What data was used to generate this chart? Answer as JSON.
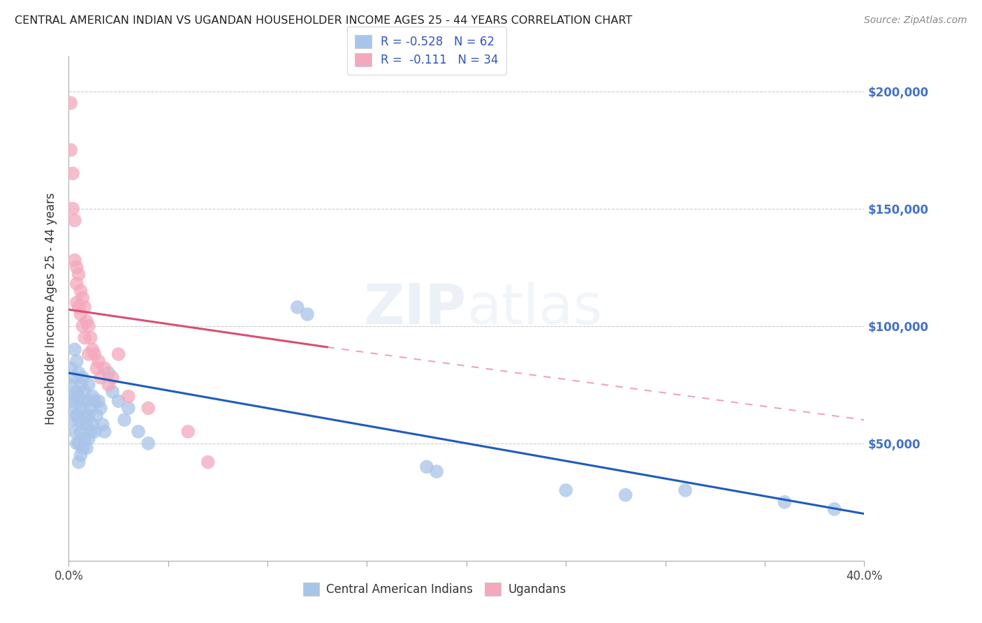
{
  "title": "CENTRAL AMERICAN INDIAN VS UGANDAN HOUSEHOLDER INCOME AGES 25 - 44 YEARS CORRELATION CHART",
  "source": "Source: ZipAtlas.com",
  "ylabel": "Householder Income Ages 25 - 44 years",
  "xlim": [
    0.0,
    0.4
  ],
  "ylim": [
    0,
    215000
  ],
  "yticks": [
    0,
    50000,
    100000,
    150000,
    200000
  ],
  "blue_label": "Central American Indians",
  "pink_label": "Ugandans",
  "blue_R": -0.528,
  "blue_N": 62,
  "pink_R": -0.111,
  "pink_N": 34,
  "blue_color": "#a8c4e8",
  "pink_color": "#f4a8bc",
  "blue_line_color": "#1e5bbf",
  "pink_line_color": "#d94f72",
  "blue_scatter_x": [
    0.001,
    0.001,
    0.002,
    0.002,
    0.002,
    0.003,
    0.003,
    0.003,
    0.003,
    0.004,
    0.004,
    0.004,
    0.004,
    0.005,
    0.005,
    0.005,
    0.005,
    0.005,
    0.006,
    0.006,
    0.006,
    0.006,
    0.007,
    0.007,
    0.007,
    0.007,
    0.008,
    0.008,
    0.008,
    0.009,
    0.009,
    0.009,
    0.01,
    0.01,
    0.01,
    0.011,
    0.011,
    0.012,
    0.012,
    0.013,
    0.013,
    0.014,
    0.015,
    0.016,
    0.017,
    0.018,
    0.02,
    0.022,
    0.025,
    0.028,
    0.03,
    0.035,
    0.04,
    0.115,
    0.12,
    0.18,
    0.185,
    0.25,
    0.28,
    0.31,
    0.36,
    0.385
  ],
  "blue_scatter_y": [
    82000,
    75000,
    70000,
    68000,
    60000,
    90000,
    78000,
    65000,
    55000,
    85000,
    72000,
    62000,
    50000,
    80000,
    70000,
    60000,
    50000,
    42000,
    75000,
    65000,
    55000,
    45000,
    78000,
    68000,
    58000,
    48000,
    72000,
    62000,
    52000,
    68000,
    58000,
    48000,
    75000,
    62000,
    52000,
    65000,
    55000,
    70000,
    58000,
    68000,
    55000,
    62000,
    68000,
    65000,
    58000,
    55000,
    80000,
    72000,
    68000,
    60000,
    65000,
    55000,
    50000,
    108000,
    105000,
    40000,
    38000,
    30000,
    28000,
    30000,
    25000,
    22000
  ],
  "pink_scatter_x": [
    0.001,
    0.001,
    0.002,
    0.002,
    0.003,
    0.003,
    0.004,
    0.004,
    0.004,
    0.005,
    0.005,
    0.006,
    0.006,
    0.007,
    0.007,
    0.008,
    0.008,
    0.009,
    0.01,
    0.01,
    0.011,
    0.012,
    0.013,
    0.014,
    0.015,
    0.016,
    0.018,
    0.02,
    0.022,
    0.025,
    0.03,
    0.04,
    0.06,
    0.07
  ],
  "pink_scatter_y": [
    195000,
    175000,
    165000,
    150000,
    145000,
    128000,
    125000,
    118000,
    110000,
    122000,
    108000,
    115000,
    105000,
    112000,
    100000,
    108000,
    95000,
    102000,
    100000,
    88000,
    95000,
    90000,
    88000,
    82000,
    85000,
    78000,
    82000,
    75000,
    78000,
    88000,
    70000,
    65000,
    55000,
    42000
  ],
  "xticks": [
    0.0,
    0.05,
    0.1,
    0.15,
    0.2,
    0.25,
    0.3,
    0.35,
    0.4
  ],
  "xtick_labels": [
    "0.0%",
    "",
    "",
    "",
    "",
    "",
    "",
    "",
    "40.0%"
  ]
}
